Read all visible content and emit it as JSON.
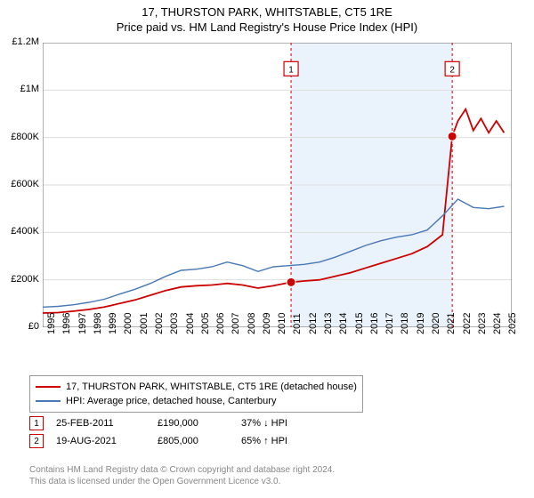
{
  "title": "17, THURSTON PARK, WHITSTABLE, CT5 1RE",
  "subtitle": "Price paid vs. HM Land Registry's House Price Index (HPI)",
  "chart": {
    "type": "line",
    "background_color": "#ffffff",
    "plot_border_color": "#666666",
    "grid_color": "#dddddd",
    "shaded_region": {
      "x_from": 2011.15,
      "x_to": 2021.63,
      "fill": "#eaf2fb"
    },
    "xlim": [
      1995,
      2025.5
    ],
    "ylim": [
      0,
      1200000
    ],
    "ytick_step": 200000,
    "ytick_labels": [
      "£0",
      "£200K",
      "£400K",
      "£600K",
      "£800K",
      "£1M",
      "£1.2M"
    ],
    "xtick_step": 1,
    "xtick_labels": [
      "1995",
      "1996",
      "1997",
      "1998",
      "1999",
      "2000",
      "2001",
      "2002",
      "2003",
      "2004",
      "2005",
      "2006",
      "2007",
      "2008",
      "2009",
      "2010",
      "2011",
      "2012",
      "2013",
      "2014",
      "2015",
      "2016",
      "2017",
      "2018",
      "2019",
      "2020",
      "2021",
      "2022",
      "2023",
      "2024",
      "2025"
    ],
    "tick_fontsize": 11,
    "series": [
      {
        "name": "17, THURSTON PARK, WHITSTABLE, CT5 1RE (detached house)",
        "color": "#cc0000",
        "line_width": 1.8,
        "x": [
          1995,
          1996,
          1997,
          1998,
          1999,
          2000,
          2001,
          2002,
          2003,
          2004,
          2005,
          2006,
          2007,
          2008,
          2009,
          2010,
          2011,
          2011.15,
          2012,
          2013,
          2014,
          2015,
          2016,
          2017,
          2018,
          2019,
          2020,
          2021,
          2021.63,
          2022,
          2022.5,
          2023,
          2023.5,
          2024,
          2024.5,
          2025
        ],
        "y": [
          60000,
          62000,
          68000,
          75000,
          85000,
          100000,
          115000,
          135000,
          155000,
          170000,
          175000,
          178000,
          185000,
          178000,
          165000,
          175000,
          188000,
          190000,
          195000,
          200000,
          215000,
          230000,
          250000,
          270000,
          290000,
          310000,
          340000,
          390000,
          805000,
          870000,
          920000,
          830000,
          880000,
          820000,
          870000,
          820000
        ]
      },
      {
        "name": "HPI: Average price, detached house, Canterbury",
        "color": "#4a78b5",
        "line_width": 1.4,
        "x": [
          1995,
          1996,
          1997,
          1998,
          1999,
          2000,
          2001,
          2002,
          2003,
          2004,
          2005,
          2006,
          2007,
          2008,
          2009,
          2010,
          2011,
          2012,
          2013,
          2014,
          2015,
          2016,
          2017,
          2018,
          2019,
          2020,
          2021,
          2022,
          2023,
          2024,
          2025
        ],
        "y": [
          85000,
          88000,
          95000,
          105000,
          118000,
          140000,
          160000,
          185000,
          215000,
          240000,
          245000,
          255000,
          275000,
          260000,
          235000,
          255000,
          260000,
          265000,
          275000,
          295000,
          320000,
          345000,
          365000,
          380000,
          390000,
          410000,
          470000,
          540000,
          505000,
          500000,
          510000
        ]
      }
    ],
    "markers": [
      {
        "n": "1",
        "x": 2011.15,
        "y": 190000,
        "color": "#cc0000",
        "label_y": 1090000
      },
      {
        "n": "2",
        "x": 2021.63,
        "y": 805000,
        "color": "#cc0000",
        "label_y": 1090000
      }
    ]
  },
  "legend": {
    "items": [
      {
        "color": "#cc0000",
        "label": "17, THURSTON PARK, WHITSTABLE, CT5 1RE (detached house)"
      },
      {
        "color": "#4a78b5",
        "label": "HPI: Average price, detached house, Canterbury"
      }
    ]
  },
  "transactions": [
    {
      "n": "1",
      "marker_color": "#cc0000",
      "date": "25-FEB-2011",
      "price": "£190,000",
      "hpi": "37% ↓ HPI"
    },
    {
      "n": "2",
      "marker_color": "#cc0000",
      "date": "19-AUG-2021",
      "price": "£805,000",
      "hpi": "65% ↑ HPI"
    }
  ],
  "footer_line1": "Contains HM Land Registry data © Crown copyright and database right 2024.",
  "footer_line2": "This data is licensed under the Open Government Licence v3.0."
}
